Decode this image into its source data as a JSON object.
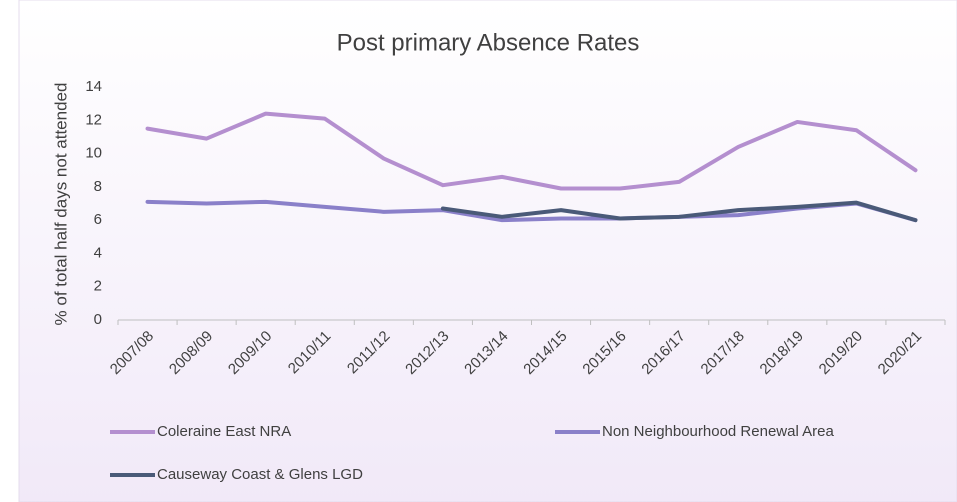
{
  "chart_data": {
    "type": "line",
    "title": "Post primary Absence Rates",
    "y_label": "% of total half days not attended",
    "categories": [
      "2007/08",
      "2008/09",
      "2009/10",
      "2010/11",
      "2011/12",
      "2012/13",
      "2013/14",
      "2014/15",
      "2015/16",
      "2016/17",
      "2017/18",
      "2018/19",
      "2019/20",
      "2020/21"
    ],
    "series": [
      {
        "name": "Coleraine East NRA",
        "color": "#b48fcf",
        "values": [
          11.5,
          10.9,
          12.4,
          12.1,
          9.7,
          8.1,
          8.6,
          7.9,
          7.9,
          8.3,
          10.4,
          11.9,
          11.4,
          9.0
        ]
      },
      {
        "name": "Non Neighbourhood Renewal Area",
        "color": "#8a80c9",
        "values": [
          7.1,
          7.0,
          7.1,
          6.8,
          6.5,
          6.6,
          6.0,
          6.1,
          6.1,
          6.2,
          6.3,
          6.7,
          7.0,
          6.0
        ]
      },
      {
        "name": "Causeway Coast & Glens LGD",
        "color": "#4a5a78",
        "values": [
          null,
          null,
          null,
          null,
          null,
          6.7,
          6.2,
          6.6,
          6.1,
          6.2,
          6.6,
          6.8,
          7.05,
          6.0
        ]
      }
    ],
    "ylim": [
      0,
      14
    ],
    "yticks": [
      0,
      2,
      4,
      6,
      8,
      10,
      12,
      14
    ],
    "grid": false,
    "legend": "bottom"
  }
}
